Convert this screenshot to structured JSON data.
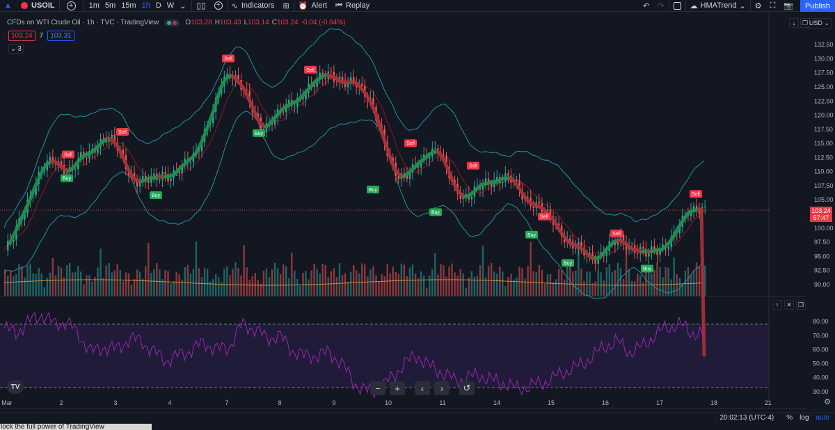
{
  "toolbar": {
    "symbol": "USOIL",
    "intervals": [
      "1m",
      "5m",
      "15m",
      "1h",
      "D",
      "W"
    ],
    "active_interval": "1h",
    "indicators_label": "Indicators",
    "alert_label": "Alert",
    "replay_label": "Replay",
    "layout_name": "HMATrend",
    "publish_label": "Publish"
  },
  "legend": {
    "title": "CFDs on WTI Crude Oil",
    "interval": "1h",
    "exchange": "TVC",
    "source": "TradingView",
    "open": "103.28",
    "high": "103.43",
    "low": "103.14",
    "close": "103.24",
    "change": "-0.04 (-0.04%)",
    "sell_price": "103.24",
    "spread": "7",
    "buy_price": "103.31",
    "collapse_count": "3"
  },
  "price_axis": {
    "currency": "USD",
    "ticks": [
      "132.50",
      "130.00",
      "127.50",
      "125.00",
      "122.50",
      "120.00",
      "117.50",
      "115.00",
      "112.50",
      "110.00",
      "107.50",
      "105.00",
      "100.00",
      "97.50",
      "95.00",
      "92.50",
      "90.00"
    ],
    "last_price": "103.24",
    "countdown": "57:47"
  },
  "rsi_axis": {
    "ticks": [
      "80.00",
      "70.00",
      "60.00",
      "50.00",
      "40.00",
      "30.00"
    ],
    "upper_band": 70,
    "lower_band": 30
  },
  "time_axis": {
    "labels": [
      "Mar",
      "2",
      "3",
      "4",
      "7",
      "8",
      "9",
      "10",
      "11",
      "14",
      "15",
      "16",
      "17",
      "18",
      "21"
    ]
  },
  "signals": {
    "sell_label": "Sell",
    "buy_label": "Buy"
  },
  "chart_data": {
    "type": "candlestick",
    "symbol": "USOIL",
    "interval": "1h",
    "y_range": [
      89,
      134
    ],
    "days": [
      "Mar",
      "2",
      "3",
      "4",
      "7",
      "8",
      "9",
      "10",
      "11",
      "14",
      "15",
      "16",
      "17",
      "18",
      "21"
    ],
    "close_path": [
      96,
      98,
      102,
      106,
      109,
      111,
      112,
      111,
      110,
      112,
      113,
      115,
      116,
      115,
      113,
      110,
      108,
      108,
      109,
      110,
      109,
      110,
      112,
      114,
      117,
      120,
      126,
      128,
      126,
      123,
      120,
      118,
      119,
      120,
      122,
      123,
      124,
      125,
      127,
      128,
      126,
      125,
      126,
      125,
      122,
      117,
      113,
      110,
      109,
      110,
      112,
      114,
      114,
      110,
      107,
      106,
      106,
      107,
      108,
      109,
      109,
      108,
      106,
      105,
      104,
      102,
      101,
      99,
      97,
      96,
      95,
      95,
      96,
      97,
      98,
      97,
      96,
      95,
      96,
      97,
      98,
      100,
      103,
      104,
      103.24
    ],
    "rsi_path": [
      75,
      72,
      80,
      85,
      78,
      80,
      70,
      58,
      62,
      60,
      68,
      66,
      58,
      52,
      56,
      60,
      65,
      60,
      62,
      78,
      75,
      68,
      70,
      60,
      55,
      56,
      58,
      50,
      36,
      30,
      32,
      40,
      50,
      56,
      48,
      44,
      38,
      40,
      42,
      38,
      36,
      32,
      34,
      36,
      40,
      45,
      48,
      55,
      62,
      66,
      58,
      62,
      70,
      76,
      78,
      72,
      70
    ],
    "signals": [
      {
        "type": "Sell",
        "price": 112,
        "label": "Sell"
      },
      {
        "type": "Buy",
        "price": 110,
        "label": "Buy"
      },
      {
        "type": "Sell",
        "price": 116,
        "label": "Sell"
      },
      {
        "type": "Buy",
        "price": 107,
        "label": "Buy"
      },
      {
        "type": "Sell",
        "price": 129,
        "label": "Sell"
      },
      {
        "type": "Buy",
        "price": 118,
        "label": "Buy"
      },
      {
        "type": "Sell",
        "price": 127,
        "label": "Sell"
      },
      {
        "type": "Buy",
        "price": 108,
        "label": "Buy"
      },
      {
        "type": "Sell",
        "price": 114,
        "label": "Sell"
      },
      {
        "type": "Buy",
        "price": 104,
        "label": "Buy"
      },
      {
        "type": "Sell",
        "price": 110,
        "label": "Sell"
      },
      {
        "type": "Sell",
        "price": 101,
        "label": "Sell"
      },
      {
        "type": "Buy",
        "price": 100,
        "label": "Buy"
      },
      {
        "type": "Buy",
        "price": 95,
        "label": "Buy"
      },
      {
        "type": "Sell",
        "price": 98,
        "label": "Sell"
      },
      {
        "type": "Buy",
        "price": 94,
        "label": "Buy"
      },
      {
        "type": "Sell",
        "price": 105,
        "label": "Sell"
      }
    ]
  },
  "bottom_bar": {
    "promo": "lock the full power of TradingView",
    "clock": "20:02:13 (UTC-4)",
    "percent": "%",
    "log": "log",
    "auto": "auto"
  },
  "colors": {
    "up": "#26a69a",
    "down": "#ef5350",
    "background": "#131722",
    "rsi": "#9c27b0",
    "band": "#2196a3",
    "accent": "#2962ff"
  }
}
